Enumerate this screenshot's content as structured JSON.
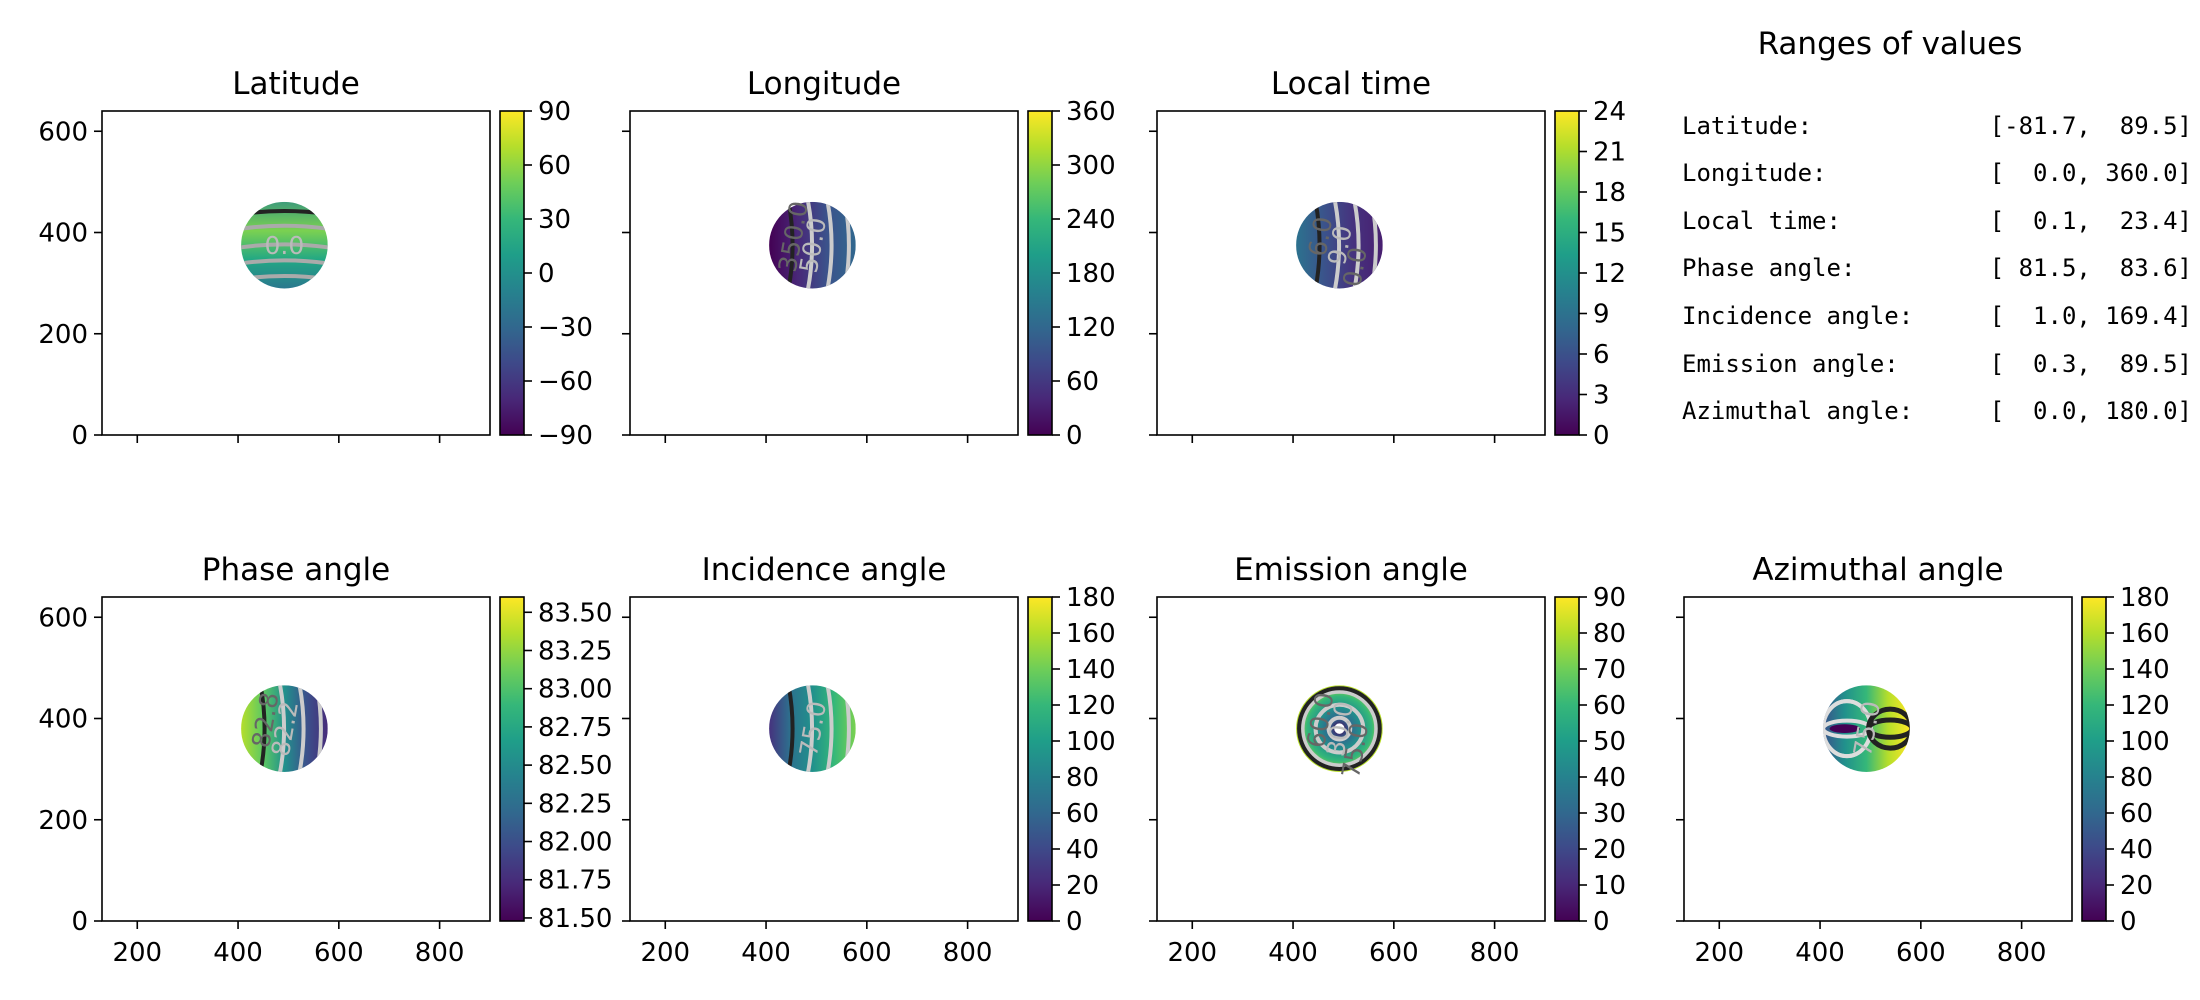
{
  "chart_data": [
    {
      "type": "heatmap",
      "title": "Latitude",
      "xlim": [
        130,
        900
      ],
      "ylim": [
        0,
        640
      ],
      "xticks": [
        200,
        400,
        600,
        800
      ],
      "yticks": [
        0,
        200,
        400,
        600
      ],
      "show_xtick_labels": false,
      "show_ytick_labels": true,
      "disk": {
        "center": [
          492,
          375
        ],
        "radius": 86
      },
      "colorbar": {
        "colormap": "viridis",
        "range": [
          -90,
          90
        ],
        "ticks": [
          90,
          60,
          30,
          0,
          -30,
          -60,
          -90
        ],
        "tick_labels": [
          "90",
          "60",
          "30",
          "0",
          "−30",
          "−60",
          "−90"
        ]
      },
      "value_at_disk_center": 0.0,
      "gradient": "vertical",
      "contour_labels": [
        "0.0"
      ]
    },
    {
      "type": "heatmap",
      "title": "Longitude",
      "xlim": [
        130,
        900
      ],
      "ylim": [
        0,
        640
      ],
      "xticks": [
        200,
        400,
        600,
        800
      ],
      "yticks": [
        0,
        200,
        400,
        600
      ],
      "show_xtick_labels": false,
      "show_ytick_labels": false,
      "disk": {
        "center": [
          492,
          375
        ],
        "radius": 86
      },
      "colorbar": {
        "colormap": "viridis",
        "range": [
          0,
          360
        ],
        "ticks": [
          360,
          300,
          240,
          180,
          120,
          60,
          0
        ],
        "tick_labels": [
          "360",
          "300",
          "240",
          "180",
          "120",
          "60",
          "0"
        ]
      },
      "gradient": "horizontal",
      "contour_labels": [
        "50.0",
        "350.0"
      ]
    },
    {
      "type": "heatmap",
      "title": "Local time",
      "xlim": [
        130,
        900
      ],
      "ylim": [
        0,
        640
      ],
      "xticks": [
        200,
        400,
        600,
        800
      ],
      "yticks": [
        0,
        200,
        400,
        600
      ],
      "show_xtick_labels": false,
      "show_ytick_labels": false,
      "disk": {
        "center": [
          492,
          375
        ],
        "radius": 86
      },
      "colorbar": {
        "colormap": "viridis",
        "range": [
          0,
          24
        ],
        "ticks": [
          24,
          21,
          18,
          15,
          12,
          9,
          6,
          3,
          0
        ],
        "tick_labels": [
          "24",
          "21",
          "18",
          "15",
          "12",
          "9",
          "6",
          "3",
          "0"
        ]
      },
      "gradient": "horizontal",
      "contour_labels": [
        "9.0",
        "6.0",
        "0.0"
      ]
    },
    {
      "type": "heatmap",
      "title": "Phase angle",
      "xlim": [
        130,
        900
      ],
      "ylim": [
        0,
        640
      ],
      "xticks": [
        200,
        400,
        600,
        800
      ],
      "yticks": [
        0,
        200,
        400,
        600
      ],
      "show_xtick_labels": true,
      "show_ytick_labels": true,
      "disk": {
        "center": [
          492,
          380
        ],
        "radius": 86
      },
      "colorbar": {
        "colormap": "viridis",
        "range": [
          81.48,
          83.6
        ],
        "ticks": [
          83.5,
          83.25,
          83.0,
          82.75,
          82.5,
          82.25,
          82.0,
          81.75,
          81.5
        ],
        "tick_labels": [
          "83.50",
          "83.25",
          "83.00",
          "82.75",
          "82.50",
          "82.25",
          "82.00",
          "81.75",
          "81.50"
        ]
      },
      "gradient": "horizontal-reversed",
      "contour_labels": [
        "82.2",
        "82.8"
      ]
    },
    {
      "type": "heatmap",
      "title": "Incidence angle",
      "xlim": [
        130,
        900
      ],
      "ylim": [
        0,
        640
      ],
      "xticks": [
        200,
        400,
        600,
        800
      ],
      "yticks": [
        0,
        200,
        400,
        600
      ],
      "show_xtick_labels": true,
      "show_ytick_labels": false,
      "disk": {
        "center": [
          492,
          380
        ],
        "radius": 86
      },
      "colorbar": {
        "colormap": "viridis",
        "range": [
          0,
          180
        ],
        "ticks": [
          180,
          160,
          140,
          120,
          100,
          80,
          60,
          40,
          20,
          0
        ],
        "tick_labels": [
          "180",
          "160",
          "140",
          "120",
          "100",
          "80",
          "60",
          "40",
          "20",
          "0"
        ]
      },
      "gradient": "horizontal",
      "contour_labels": [
        "75.0"
      ]
    },
    {
      "type": "heatmap",
      "title": "Emission angle",
      "xlim": [
        130,
        900
      ],
      "ylim": [
        0,
        640
      ],
      "xticks": [
        200,
        400,
        600,
        800
      ],
      "yticks": [
        0,
        200,
        400,
        600
      ],
      "show_xtick_labels": true,
      "show_ytick_labels": false,
      "disk": {
        "center": [
          492,
          380
        ],
        "radius": 86
      },
      "colorbar": {
        "colormap": "viridis",
        "range": [
          0,
          90
        ],
        "ticks": [
          90,
          80,
          70,
          60,
          50,
          40,
          30,
          20,
          10,
          0
        ],
        "tick_labels": [
          "90",
          "80",
          "70",
          "60",
          "50",
          "40",
          "30",
          "20",
          "10",
          "0"
        ]
      },
      "gradient": "radial",
      "contour_labels": [
        "30.0",
        "60.0",
        "75.0"
      ]
    },
    {
      "type": "heatmap",
      "title": "Azimuthal angle",
      "xlim": [
        130,
        900
      ],
      "ylim": [
        0,
        640
      ],
      "xticks": [
        200,
        400,
        600,
        800
      ],
      "yticks": [
        0,
        200,
        400,
        600
      ],
      "show_xtick_labels": true,
      "show_ytick_labels": false,
      "disk": {
        "center": [
          492,
          380
        ],
        "radius": 86
      },
      "colorbar": {
        "colormap": "viridis",
        "range": [
          0,
          180
        ],
        "ticks": [
          180,
          160,
          140,
          120,
          100,
          80,
          60,
          40,
          20,
          0
        ],
        "tick_labels": [
          "180",
          "160",
          "140",
          "120",
          "100",
          "80",
          "60",
          "40",
          "20",
          "0"
        ]
      },
      "gradient": "horizontal",
      "contour_labels": [
        "75.0"
      ]
    }
  ],
  "ranges_panel": {
    "title": "Ranges of values",
    "rows": [
      {
        "label": "Latitude:",
        "value": "[-81.7,  89.5]"
      },
      {
        "label": "Longitude:",
        "value": "[  0.0, 360.0]"
      },
      {
        "label": "Local time:",
        "value": "[  0.1,  23.4]"
      },
      {
        "label": "Phase angle:",
        "value": "[ 81.5,  83.6]"
      },
      {
        "label": "Incidence angle:",
        "value": "[  1.0, 169.4]"
      },
      {
        "label": "Emission angle:",
        "value": "[  0.3,  89.5]"
      },
      {
        "label": "Azimuthal angle:",
        "value": "[  0.0, 180.0]"
      }
    ]
  }
}
